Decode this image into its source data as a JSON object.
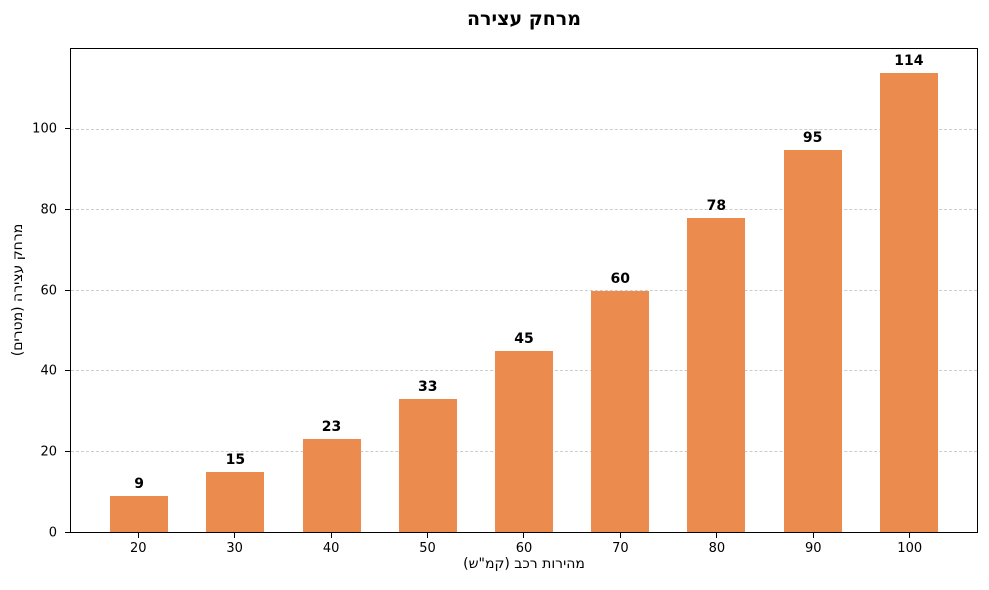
{
  "chart_data": {
    "type": "bar",
    "title": "מרחק עצירה",
    "xlabel": "מהירות רכב (קמ\"ש)",
    "ylabel": "מרחק עצירה (מטרים)",
    "categories": [
      "20",
      "30",
      "40",
      "50",
      "60",
      "70",
      "80",
      "90",
      "100"
    ],
    "values": [
      9,
      15,
      23,
      33,
      45,
      60,
      78,
      95,
      114
    ],
    "value_labels": [
      "9",
      "15",
      "23",
      "33",
      "45",
      "60",
      "78",
      "95",
      "114"
    ],
    "ylim": [
      0,
      120
    ],
    "yticks": [
      0,
      20,
      40,
      60,
      80,
      100
    ],
    "grid": "horizontal-dashed",
    "legend": "none",
    "bar_color": "#ec8b4e",
    "grid_color": "#cccccc",
    "spine_color": "#000000",
    "text_color": "#000000",
    "background_color": "#ffffff"
  }
}
